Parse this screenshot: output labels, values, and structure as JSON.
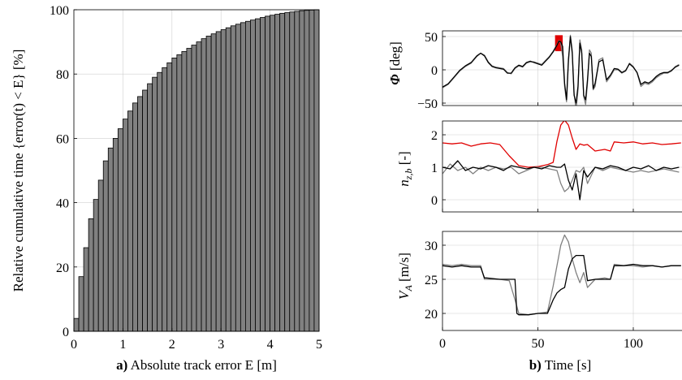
{
  "chart_data": [
    {
      "type": "bar",
      "panel_label": "a)",
      "xlabel": "Absolute track error E [m]",
      "ylabel": "Relative cumulative time {error(t) < E} [%]",
      "xlim": [
        0,
        5
      ],
      "ylim": [
        0,
        100
      ],
      "xticks": [
        "0",
        "1",
        "2",
        "3",
        "4",
        "5"
      ],
      "yticks": [
        "0",
        "20",
        "40",
        "60",
        "80",
        "100"
      ],
      "grid": true,
      "bar_width": 0.1,
      "bar_color": "#808080",
      "x": [
        0.05,
        0.15,
        0.25,
        0.35,
        0.45,
        0.55,
        0.65,
        0.75,
        0.85,
        0.95,
        1.05,
        1.15,
        1.25,
        1.35,
        1.45,
        1.55,
        1.65,
        1.75,
        1.85,
        1.95,
        2.05,
        2.15,
        2.25,
        2.35,
        2.45,
        2.55,
        2.65,
        2.75,
        2.85,
        2.95,
        3.05,
        3.15,
        3.25,
        3.35,
        3.45,
        3.55,
        3.65,
        3.75,
        3.85,
        3.95,
        4.05,
        4.15,
        4.25,
        4.35,
        4.45,
        4.55,
        4.65,
        4.75,
        4.85,
        4.95
      ],
      "values": [
        4,
        17,
        26,
        35,
        41,
        47,
        53,
        57,
        60,
        63,
        66,
        68.5,
        71,
        73,
        75,
        77,
        79,
        80.5,
        82,
        83.5,
        85,
        86,
        87,
        88,
        89,
        90,
        91,
        91.8,
        92.5,
        93.2,
        93.8,
        94.4,
        95,
        95.5,
        96,
        96.4,
        96.8,
        97.2,
        97.6,
        98,
        98.3,
        98.6,
        98.9,
        99.1,
        99.3,
        99.5,
        99.7,
        99.8,
        99.9,
        100
      ]
    },
    {
      "type": "line",
      "panel_label": "b)",
      "xlabel": "Time [s]",
      "xlim": [
        0,
        125
      ],
      "xticks": [
        "0",
        "50",
        "100"
      ],
      "grid": true,
      "subplots": [
        {
          "ylabel_symbol": "Φ",
          "ylabel": "[deg]",
          "ylim": [
            -55,
            55
          ],
          "yticks": [
            "−50",
            "0",
            "50"
          ],
          "highlight": {
            "x": [
              59,
              63
            ],
            "y": [
              28,
              52
            ],
            "color": "#e00000"
          },
          "series": [
            {
              "color": "#808080",
              "x": [
                0,
                3,
                6,
                9,
                12,
                15,
                18,
                20,
                22,
                24,
                26,
                28,
                30,
                32,
                34,
                36,
                38,
                40,
                42,
                44,
                46,
                48,
                50,
                52,
                54,
                56,
                58,
                60,
                61,
                62,
                63,
                64,
                65,
                66,
                67,
                68,
                69,
                70,
                71,
                72,
                73,
                74,
                75,
                76,
                77,
                78,
                79,
                80,
                82,
                84,
                86,
                88,
                90,
                92,
                94,
                96,
                98,
                100,
                102,
                104,
                106,
                108,
                110,
                112,
                114,
                116,
                118,
                120,
                122,
                124
              ],
              "y": [
                -27,
                -22,
                -12,
                -2,
                5,
                10,
                20,
                25,
                22,
                12,
                6,
                4,
                3,
                2,
                -4,
                -6,
                2,
                6,
                4,
                10,
                12,
                12,
                10,
                8,
                14,
                20,
                28,
                38,
                44,
                40,
                20,
                -25,
                -48,
                10,
                52,
                30,
                -35,
                -60,
                -30,
                45,
                30,
                -40,
                -52,
                -20,
                30,
                25,
                -30,
                -25,
                15,
                18,
                -18,
                -10,
                0,
                0,
                -5,
                -2,
                10,
                5,
                -5,
                -25,
                -20,
                -22,
                -18,
                -12,
                -8,
                -5,
                -5,
                -2,
                5,
                8
              ]
            },
            {
              "color": "#000000",
              "x": [
                0,
                3,
                6,
                9,
                12,
                15,
                18,
                20,
                22,
                24,
                26,
                28,
                30,
                32,
                34,
                36,
                38,
                40,
                42,
                44,
                46,
                48,
                50,
                52,
                54,
                56,
                58,
                60,
                61,
                62,
                63,
                64,
                65,
                66,
                67,
                68,
                69,
                70,
                71,
                72,
                73,
                74,
                75,
                76,
                77,
                78,
                79,
                80,
                82,
                84,
                86,
                88,
                90,
                92,
                94,
                96,
                98,
                100,
                102,
                104,
                106,
                108,
                110,
                112,
                114,
                116,
                118,
                120,
                122,
                124
              ],
              "y": [
                -26,
                -21,
                -11,
                -1,
                6,
                11,
                21,
                25,
                21,
                11,
                5,
                3,
                2,
                1,
                -5,
                -5,
                3,
                7,
                5,
                11,
                13,
                11,
                9,
                7,
                13,
                19,
                27,
                37,
                43,
                42,
                35,
                -20,
                -45,
                15,
                50,
                25,
                -38,
                -50,
                -25,
                40,
                25,
                -38,
                -45,
                -15,
                25,
                20,
                -28,
                -20,
                12,
                15,
                -15,
                -8,
                2,
                1,
                -4,
                -1,
                9,
                4,
                -4,
                -22,
                -18,
                -20,
                -16,
                -10,
                -6,
                -4,
                -4,
                -1,
                4,
                7
              ]
            }
          ]
        },
        {
          "ylabel_symbol": "n",
          "ylabel_sub": "z,b",
          "ylabel": "[-]",
          "ylim": [
            -0.3,
            2.5
          ],
          "yticks": [
            "0",
            "1",
            "2"
          ],
          "series": [
            {
              "color": "#e00000",
              "x": [
                0,
                5,
                10,
                15,
                20,
                25,
                30,
                35,
                40,
                45,
                50,
                55,
                58,
                60,
                62,
                64,
                66,
                68,
                70,
                72,
                74,
                76,
                80,
                85,
                88,
                90,
                95,
                100,
                105,
                110,
                115,
                120,
                125
              ],
              "y": [
                1.75,
                1.72,
                1.75,
                1.65,
                1.72,
                1.75,
                1.7,
                1.35,
                1.05,
                1.0,
                1.02,
                1.08,
                1.15,
                1.8,
                2.3,
                2.45,
                2.3,
                1.9,
                1.55,
                1.72,
                1.68,
                1.7,
                1.5,
                1.55,
                1.5,
                1.78,
                1.75,
                1.78,
                1.72,
                1.75,
                1.7,
                1.72,
                1.75
              ]
            },
            {
              "color": "#808080",
              "x": [
                0,
                4,
                8,
                12,
                16,
                20,
                24,
                28,
                32,
                36,
                40,
                44,
                48,
                52,
                56,
                60,
                62,
                64,
                66,
                68,
                70,
                72,
                74,
                76,
                80,
                84,
                88,
                92,
                96,
                100,
                104,
                108,
                112,
                116,
                120,
                124
              ],
              "y": [
                0.8,
                1.1,
                0.9,
                1.0,
                0.8,
                1.0,
                0.9,
                1.0,
                0.95,
                1.0,
                0.8,
                0.9,
                1.0,
                1.0,
                0.95,
                0.9,
                0.5,
                0.25,
                0.35,
                0.6,
                0.9,
                0.85,
                1.0,
                0.5,
                1.0,
                0.9,
                1.0,
                0.95,
                0.9,
                0.85,
                0.9,
                0.85,
                0.9,
                0.95,
                0.9,
                0.85
              ]
            },
            {
              "color": "#000000",
              "x": [
                0,
                4,
                8,
                12,
                16,
                20,
                24,
                28,
                32,
                36,
                40,
                44,
                48,
                52,
                56,
                60,
                62,
                64,
                66,
                68,
                70,
                72,
                74,
                76,
                80,
                84,
                88,
                92,
                96,
                100,
                104,
                108,
                112,
                116,
                120,
                124
              ],
              "y": [
                1.0,
                0.95,
                1.2,
                0.9,
                1.0,
                0.95,
                1.05,
                1.0,
                0.9,
                1.05,
                1.0,
                0.95,
                1.0,
                0.95,
                1.05,
                1.0,
                1.0,
                1.1,
                0.6,
                0.3,
                0.8,
                0.0,
                0.9,
                0.7,
                1.0,
                0.95,
                1.05,
                1.0,
                0.9,
                1.0,
                0.95,
                1.05,
                0.9,
                1.0,
                0.95,
                1.0
              ]
            }
          ]
        },
        {
          "ylabel_symbol": "V",
          "ylabel_sub": "A",
          "ylabel": "[m/s]",
          "ylim": [
            18.5,
            32.5
          ],
          "yticks": [
            "20",
            "25",
            "30"
          ],
          "series": [
            {
              "color": "#808080",
              "x": [
                0,
                5,
                10,
                15,
                20,
                22,
                23,
                30,
                35,
                38,
                40,
                45,
                50,
                55,
                58,
                60,
                62,
                64,
                66,
                68,
                70,
                72,
                74,
                76,
                80,
                85,
                88,
                90,
                95,
                100,
                105,
                110,
                115,
                120,
                125
              ],
              "y": [
                27.2,
                27.0,
                27.2,
                27.0,
                27.0,
                25.0,
                25.0,
                25.0,
                24.8,
                22.0,
                20.0,
                19.8,
                20.0,
                20.2,
                24.0,
                27.0,
                30.0,
                31.5,
                30.5,
                28.0,
                26.0,
                24.5,
                26.0,
                23.8,
                25.0,
                25.2,
                25.0,
                27.2,
                27.0,
                27.0,
                26.8,
                27.0,
                26.8,
                27.0,
                27.0
              ]
            },
            {
              "color": "#000000",
              "x": [
                0,
                5,
                10,
                15,
                20,
                22,
                23,
                30,
                35,
                38,
                39,
                40,
                45,
                50,
                55,
                58,
                60,
                62,
                64,
                66,
                68,
                70,
                72,
                74,
                76,
                80,
                85,
                88,
                90,
                95,
                100,
                105,
                110,
                115,
                120,
                125
              ],
              "y": [
                27.0,
                26.8,
                27.0,
                26.8,
                26.8,
                25.2,
                25.2,
                25.0,
                25.0,
                25.0,
                20.0,
                19.8,
                19.8,
                20.0,
                20.0,
                22.0,
                23.0,
                23.5,
                23.8,
                26.5,
                28.0,
                28.5,
                28.5,
                28.5,
                24.8,
                25.0,
                25.0,
                25.0,
                27.0,
                27.0,
                27.2,
                27.0,
                27.0,
                26.8,
                27.0,
                27.0
              ]
            }
          ]
        }
      ]
    }
  ]
}
